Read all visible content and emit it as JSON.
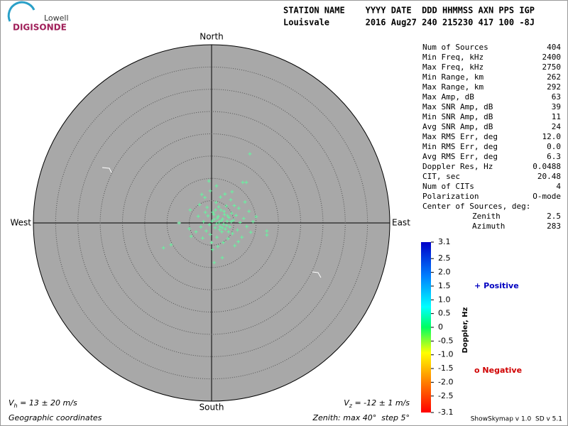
{
  "logo": {
    "top": "Lowell",
    "bottom": "DIGISONDE"
  },
  "header": {
    "line1": "STATION NAME    YYYY DATE  DDD HHMMSS AXN PPS IGP",
    "line2": "Louisvale       2016 Aug27 240 215230 417 100 -8J"
  },
  "compass": {
    "north": "North",
    "south": "South",
    "east": "East",
    "west": "West"
  },
  "grid": {
    "max_zenith": 40,
    "step": 5
  },
  "points_color": "#66f5a0",
  "points": [
    [
      8.6,
      15.5
    ],
    [
      -10.8,
      -5.6
    ],
    [
      -9.1,
      -4.9
    ],
    [
      12.4,
      -1.8
    ],
    [
      12.4,
      -2.7
    ],
    [
      0.6,
      -8.9
    ],
    [
      2.4,
      -7.8
    ],
    [
      -0.6,
      9.4
    ],
    [
      1.1,
      8.3
    ],
    [
      7.0,
      9.1
    ],
    [
      7.8,
      9.1
    ],
    [
      4.6,
      7.0
    ],
    [
      -7.3,
      0.0
    ],
    [
      -4.8,
      2.9
    ],
    [
      -5.0,
      -1.3
    ],
    [
      -4.6,
      -3.0
    ],
    [
      -3.5,
      -2.0
    ],
    [
      -3.0,
      1.5
    ],
    [
      -2.7,
      4.1
    ],
    [
      -2.2,
      6.4
    ],
    [
      -1.5,
      5.7
    ],
    [
      -1.0,
      3.5
    ],
    [
      -0.8,
      1.6
    ],
    [
      -0.5,
      -0.4
    ],
    [
      -0.3,
      -2.6
    ],
    [
      0.0,
      -4.4
    ],
    [
      0.3,
      2.4
    ],
    [
      0.6,
      0.8
    ],
    [
      0.8,
      -1.1
    ],
    [
      1.0,
      4.6
    ],
    [
      1.2,
      -3.2
    ],
    [
      1.5,
      1.5
    ],
    [
      1.7,
      0.2
    ],
    [
      1.9,
      -0.8
    ],
    [
      2.1,
      2.9
    ],
    [
      2.3,
      -2.0
    ],
    [
      2.5,
      0.9
    ],
    [
      2.7,
      -0.3
    ],
    [
      2.9,
      1.9
    ],
    [
      3.1,
      -1.4
    ],
    [
      3.3,
      3.8
    ],
    [
      3.5,
      0.4
    ],
    [
      3.7,
      -3.5
    ],
    [
      3.9,
      1.2
    ],
    [
      4.1,
      -0.9
    ],
    [
      4.3,
      5.2
    ],
    [
      4.5,
      2.2
    ],
    [
      4.7,
      -2.4
    ],
    [
      4.9,
      0.6
    ],
    [
      5.2,
      -5.1
    ],
    [
      5.5,
      1.7
    ],
    [
      5.8,
      -1.6
    ],
    [
      6.1,
      3.3
    ],
    [
      6.4,
      0.1
    ],
    [
      6.8,
      -3.2
    ],
    [
      7.2,
      1.0
    ],
    [
      7.5,
      4.7
    ],
    [
      7.9,
      -0.8
    ],
    [
      8.4,
      2.6
    ],
    [
      8.8,
      -2.1
    ],
    [
      9.3,
      0.3
    ],
    [
      10.0,
      1.4
    ],
    [
      -1.8,
      0.3
    ],
    [
      -2.4,
      -0.9
    ],
    [
      -1.2,
      -1.8
    ],
    [
      0.2,
      -6.0
    ],
    [
      1.4,
      -5.3
    ],
    [
      2.0,
      5.8
    ],
    [
      3.0,
      6.5
    ],
    [
      -0.3,
      7.2
    ],
    [
      1.6,
      3.6
    ],
    [
      2.6,
      -4.4
    ],
    [
      0.5,
      1.9
    ],
    [
      1.1,
      -0.2
    ],
    [
      2.2,
      0.5
    ],
    [
      3.4,
      -0.6
    ],
    [
      0.9,
      2.9
    ],
    [
      1.8,
      -1.5
    ],
    [
      2.8,
      2.6
    ],
    [
      3.8,
      -2.0
    ],
    [
      4.4,
      0.3
    ],
    [
      -1.4,
      2.4
    ],
    [
      -2.0,
      -3.4
    ],
    [
      5.1,
      3.9
    ],
    [
      6.0,
      -4.2
    ],
    [
      0.1,
      0.4
    ],
    [
      1.3,
      1.1
    ],
    [
      2.4,
      -1.1
    ],
    [
      3.6,
      1.6
    ]
  ],
  "stats": {
    "rows": [
      [
        "Num of Sources",
        "404"
      ],
      [
        "Min Freq, kHz",
        "2400"
      ],
      [
        "Max Freq, kHz",
        "2750"
      ],
      [
        "Min Range, km",
        "262"
      ],
      [
        "Max Range, km",
        "292"
      ],
      [
        "Max Amp, dB",
        "63"
      ],
      [
        "Max SNR Amp, dB",
        "39"
      ],
      [
        "Min SNR Amp, dB",
        "11"
      ],
      [
        "Avg SNR Amp, dB",
        "24"
      ],
      [
        "Max RMS Err, deg",
        "12.0"
      ],
      [
        "Min RMS Err, deg",
        "0.0"
      ],
      [
        "Avg RMS Err, deg",
        "6.3"
      ],
      [
        "Doppler Res, Hz",
        "0.0488"
      ],
      [
        "CIT, sec",
        "20.48"
      ],
      [
        "Num of CITs",
        "4"
      ],
      [
        "Polarization",
        "O-mode"
      ]
    ],
    "center_heading": "Center of Sources, deg:",
    "center": [
      [
        "Zenith",
        "2.5"
      ],
      [
        "Azimuth",
        "283"
      ]
    ]
  },
  "colorbar": {
    "label": "Doppler, Hz",
    "lim": [
      -3.1,
      3.1
    ],
    "ticks": [
      3.1,
      2.5,
      {
        "value": 2,
        "label": "2.0"
      },
      1.5,
      {
        "value": 1,
        "label": "1.0"
      },
      0.5,
      0,
      -0.5,
      {
        "value": -1,
        "label": "-1.0"
      },
      -1.5,
      {
        "value": -2,
        "label": "-2.0"
      },
      -2.5,
      -3.1
    ]
  },
  "legend": {
    "positive_symbol": "+",
    "positive": "Positive",
    "negative_symbol": "o",
    "negative": "Negative"
  },
  "footer": {
    "vh_symbol": "V",
    "vh_sub": "h",
    "vh_text": " = 13 ± 20 m/s",
    "vz_symbol": "V",
    "vz_sub": "z",
    "vz_text": " = -12 ± 1 m/s",
    "coords": "Geographic coordinates",
    "zenith": "Zenith: max 40°  step 5°",
    "version": "ShowSkymap v 1.0  SD v 5.1"
  }
}
